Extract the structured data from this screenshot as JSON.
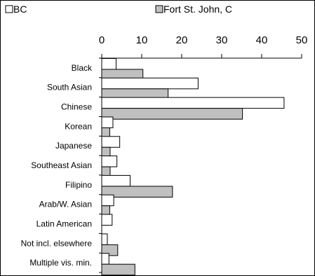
{
  "chart_data": {
    "type": "bar",
    "orientation": "horizontal",
    "categories": [
      "Black",
      "South Asian",
      "Chinese",
      "Korean",
      "Japanese",
      "Southeast Asian",
      "Filipino",
      "Arab/W. Asian",
      "Latin American",
      "Not incl. elsewhere",
      "Multiple vis. min."
    ],
    "series": [
      {
        "name": "BC",
        "values": [
          3.6,
          24.1,
          45.6,
          2.8,
          4.5,
          3.8,
          7.1,
          3.0,
          2.6,
          1.4,
          1.8
        ],
        "color": "#ffffff"
      },
      {
        "name": "Fort St. John, C",
        "values": [
          10.3,
          16.6,
          35.2,
          2.0,
          2.1,
          2.1,
          17.7,
          2.0,
          0,
          4.0,
          8.3
        ],
        "color": "#c0c0c0"
      }
    ],
    "xlim": [
      0,
      50
    ],
    "xticks": [
      0,
      10,
      20,
      30,
      40,
      50
    ],
    "xlabel": "",
    "ylabel": "",
    "legend_position": "top",
    "grid": false
  }
}
